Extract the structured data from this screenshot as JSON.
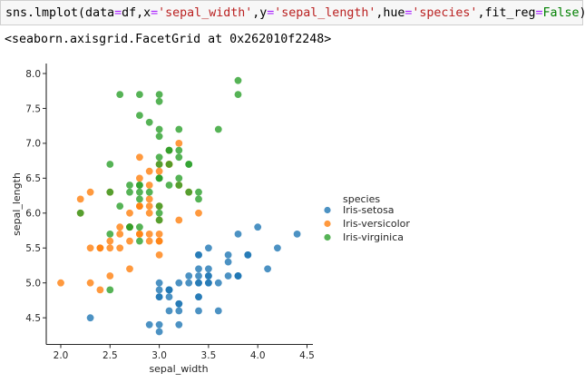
{
  "code_cell": {
    "tokens": [
      {
        "t": "sns.lmplot(data",
        "c": "plain"
      },
      {
        "t": "=",
        "c": "op"
      },
      {
        "t": "df,x",
        "c": "plain"
      },
      {
        "t": "=",
        "c": "op"
      },
      {
        "t": "'sepal_width'",
        "c": "str"
      },
      {
        "t": ",y",
        "c": "plain"
      },
      {
        "t": "=",
        "c": "op"
      },
      {
        "t": "'sepal_length'",
        "c": "str"
      },
      {
        "t": ",hue",
        "c": "plain"
      },
      {
        "t": "=",
        "c": "op"
      },
      {
        "t": "'species'",
        "c": "str"
      },
      {
        "t": ",fit_reg",
        "c": "plain"
      },
      {
        "t": "=",
        "c": "op"
      },
      {
        "t": "False",
        "c": "kw"
      },
      {
        "t": ")",
        "c": "plain"
      }
    ]
  },
  "output": {
    "text": "<seaborn.axisgrid.FacetGrid at 0x262010f2248>"
  },
  "chart_data": {
    "type": "scatter",
    "title": "",
    "xlabel": "sepal_width",
    "ylabel": "sepal_length",
    "xlim": [
      1.85,
      4.55
    ],
    "ylim": [
      4.15,
      8.1
    ],
    "xticks": [
      "2.0",
      "2.5",
      "3.0",
      "3.5",
      "4.0",
      "4.5"
    ],
    "xtick_values": [
      2.0,
      2.5,
      3.0,
      3.5,
      4.0,
      4.5
    ],
    "yticks": [
      "4.5",
      "5.0",
      "5.5",
      "6.0",
      "6.5",
      "7.0",
      "7.5",
      "8.0"
    ],
    "ytick_values": [
      4.5,
      5.0,
      5.5,
      6.0,
      6.5,
      7.0,
      7.5,
      8.0
    ],
    "grid": false,
    "legend": {
      "title": "species",
      "position": "right",
      "entries": [
        "Iris-setosa",
        "Iris-versicolor",
        "Iris-virginica"
      ]
    },
    "series": [
      {
        "name": "Iris-setosa",
        "color": "#1f77b4",
        "points": [
          [
            3.5,
            5.1
          ],
          [
            3.0,
            4.9
          ],
          [
            3.2,
            4.7
          ],
          [
            3.1,
            4.6
          ],
          [
            3.6,
            5.0
          ],
          [
            3.9,
            5.4
          ],
          [
            3.4,
            4.6
          ],
          [
            3.4,
            5.0
          ],
          [
            2.9,
            4.4
          ],
          [
            3.1,
            4.9
          ],
          [
            3.7,
            5.4
          ],
          [
            3.4,
            4.8
          ],
          [
            3.0,
            4.8
          ],
          [
            3.0,
            4.3
          ],
          [
            4.0,
            5.8
          ],
          [
            4.4,
            5.7
          ],
          [
            3.9,
            5.4
          ],
          [
            3.5,
            5.1
          ],
          [
            3.8,
            5.7
          ],
          [
            3.8,
            5.1
          ],
          [
            3.4,
            5.4
          ],
          [
            3.7,
            5.1
          ],
          [
            3.6,
            4.6
          ],
          [
            3.3,
            5.1
          ],
          [
            3.4,
            4.8
          ],
          [
            3.0,
            5.0
          ],
          [
            3.4,
            5.0
          ],
          [
            3.5,
            5.2
          ],
          [
            3.4,
            5.2
          ],
          [
            3.2,
            4.7
          ],
          [
            3.1,
            4.8
          ],
          [
            3.4,
            5.4
          ],
          [
            4.1,
            5.2
          ],
          [
            4.2,
            5.5
          ],
          [
            3.1,
            4.9
          ],
          [
            3.2,
            5.0
          ],
          [
            3.5,
            5.5
          ],
          [
            3.1,
            4.9
          ],
          [
            3.0,
            4.4
          ],
          [
            3.4,
            5.1
          ],
          [
            3.5,
            5.0
          ],
          [
            2.3,
            4.5
          ],
          [
            3.2,
            4.4
          ],
          [
            3.5,
            5.0
          ],
          [
            3.8,
            5.1
          ],
          [
            3.0,
            4.8
          ],
          [
            3.8,
            5.1
          ],
          [
            3.2,
            4.6
          ],
          [
            3.7,
            5.3
          ],
          [
            3.3,
            5.0
          ]
        ]
      },
      {
        "name": "Iris-versicolor",
        "color": "#ff7f0e",
        "points": [
          [
            3.2,
            7.0
          ],
          [
            3.2,
            6.4
          ],
          [
            3.1,
            6.9
          ],
          [
            2.3,
            5.5
          ],
          [
            2.8,
            6.5
          ],
          [
            2.8,
            5.7
          ],
          [
            3.3,
            6.3
          ],
          [
            2.4,
            4.9
          ],
          [
            2.9,
            6.6
          ],
          [
            2.7,
            5.2
          ],
          [
            2.0,
            5.0
          ],
          [
            3.0,
            5.9
          ],
          [
            2.2,
            6.0
          ],
          [
            2.9,
            6.1
          ],
          [
            2.9,
            5.6
          ],
          [
            3.1,
            6.7
          ],
          [
            3.0,
            5.6
          ],
          [
            2.7,
            5.8
          ],
          [
            2.2,
            6.2
          ],
          [
            2.5,
            5.6
          ],
          [
            3.2,
            5.9
          ],
          [
            2.8,
            6.1
          ],
          [
            2.5,
            6.3
          ],
          [
            2.8,
            6.1
          ],
          [
            2.9,
            6.4
          ],
          [
            3.0,
            6.6
          ],
          [
            2.8,
            6.8
          ],
          [
            3.0,
            6.7
          ],
          [
            2.9,
            6.0
          ],
          [
            2.6,
            5.7
          ],
          [
            2.4,
            5.5
          ],
          [
            2.4,
            5.5
          ],
          [
            2.7,
            5.8
          ],
          [
            2.7,
            6.0
          ],
          [
            3.0,
            5.4
          ],
          [
            3.4,
            6.0
          ],
          [
            3.1,
            6.7
          ],
          [
            2.3,
            6.3
          ],
          [
            3.0,
            5.6
          ],
          [
            2.5,
            5.5
          ],
          [
            2.6,
            5.5
          ],
          [
            3.0,
            6.1
          ],
          [
            2.6,
            5.8
          ],
          [
            2.3,
            5.0
          ],
          [
            2.7,
            5.6
          ],
          [
            3.0,
            5.7
          ],
          [
            2.9,
            5.7
          ],
          [
            2.9,
            6.2
          ],
          [
            2.5,
            5.1
          ],
          [
            2.8,
            5.7
          ]
        ]
      },
      {
        "name": "Iris-virginica",
        "color": "#2ca02c",
        "points": [
          [
            3.3,
            6.3
          ],
          [
            2.7,
            5.8
          ],
          [
            3.0,
            7.1
          ],
          [
            2.9,
            6.3
          ],
          [
            3.0,
            6.5
          ],
          [
            3.0,
            7.6
          ],
          [
            2.5,
            4.9
          ],
          [
            2.9,
            7.3
          ],
          [
            2.5,
            6.7
          ],
          [
            3.6,
            7.2
          ],
          [
            3.2,
            6.5
          ],
          [
            2.7,
            6.4
          ],
          [
            3.0,
            6.8
          ],
          [
            2.5,
            5.7
          ],
          [
            2.8,
            5.8
          ],
          [
            3.2,
            6.4
          ],
          [
            3.0,
            6.5
          ],
          [
            3.8,
            7.7
          ],
          [
            2.6,
            7.7
          ],
          [
            2.2,
            6.0
          ],
          [
            3.2,
            6.9
          ],
          [
            2.8,
            5.6
          ],
          [
            2.8,
            7.7
          ],
          [
            2.7,
            6.3
          ],
          [
            3.3,
            6.7
          ],
          [
            3.2,
            7.2
          ],
          [
            2.8,
            6.2
          ],
          [
            3.0,
            6.1
          ],
          [
            2.8,
            6.4
          ],
          [
            3.0,
            7.2
          ],
          [
            2.8,
            7.4
          ],
          [
            3.8,
            7.9
          ],
          [
            2.8,
            6.4
          ],
          [
            2.8,
            6.3
          ],
          [
            2.6,
            6.1
          ],
          [
            3.0,
            7.7
          ],
          [
            3.4,
            6.3
          ],
          [
            3.1,
            6.4
          ],
          [
            3.0,
            6.0
          ],
          [
            3.1,
            6.9
          ],
          [
            3.1,
            6.7
          ],
          [
            3.1,
            6.9
          ],
          [
            2.7,
            5.8
          ],
          [
            3.2,
            6.8
          ],
          [
            3.3,
            6.7
          ],
          [
            3.0,
            6.7
          ],
          [
            2.5,
            6.3
          ],
          [
            3.0,
            6.5
          ],
          [
            3.4,
            6.2
          ],
          [
            3.0,
            5.9
          ]
        ]
      }
    ]
  }
}
